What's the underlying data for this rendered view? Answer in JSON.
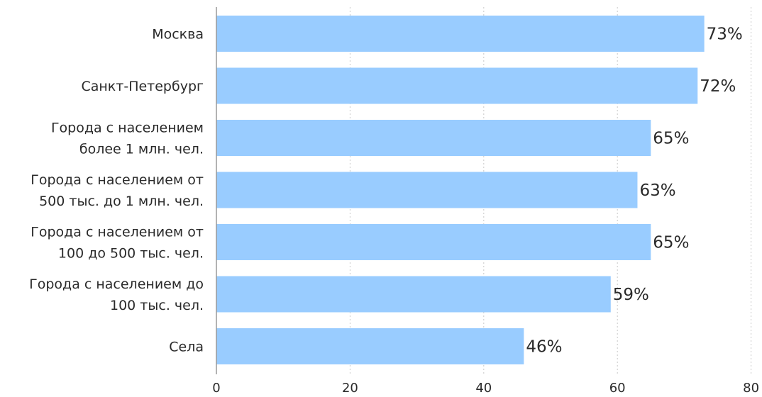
{
  "chart_data": {
    "type": "bar",
    "orientation": "horizontal",
    "categories": [
      [
        "Москва"
      ],
      [
        "Санкт-Петербург"
      ],
      [
        "Города с населением",
        "более 1 млн. чел."
      ],
      [
        "Города с населением от",
        "500 тыс. до 1 млн. чел."
      ],
      [
        "Города с населением от",
        "100 до 500 тыс. чел."
      ],
      [
        "Города с населением до",
        "100 тыс. чел."
      ],
      [
        "Села"
      ]
    ],
    "values": [
      73,
      72,
      65,
      63,
      65,
      59,
      46
    ],
    "value_labels": [
      "73%",
      "72%",
      "65%",
      "63%",
      "65%",
      "59%",
      "46%"
    ],
    "xlim": [
      0,
      80
    ],
    "xticks": [
      0,
      20,
      40,
      60,
      80
    ],
    "grid": true,
    "bar_color": "#99ccff",
    "title": "",
    "xlabel": "",
    "ylabel": ""
  }
}
